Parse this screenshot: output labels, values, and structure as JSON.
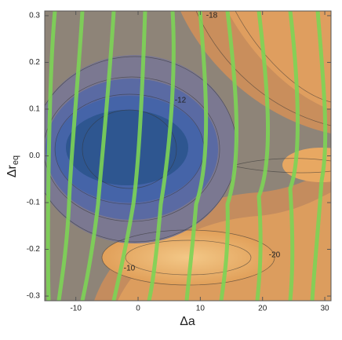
{
  "chart_data": {
    "type": "contour",
    "xlabel": "Δa",
    "ylabel": "Δr",
    "ylabel_subscript": "eq",
    "xlim": [
      -15,
      31
    ],
    "ylim": [
      -0.31,
      0.31
    ],
    "xticks": [
      -10,
      0,
      10,
      20,
      30
    ],
    "yticks": [
      -0.3,
      -0.2,
      -0.1,
      {
        "value": 0,
        "label": "0.0"
      },
      0.1,
      0.2,
      0.3
    ],
    "annotations": [
      "-18",
      "-12",
      "-10",
      "-20"
    ]
  }
}
